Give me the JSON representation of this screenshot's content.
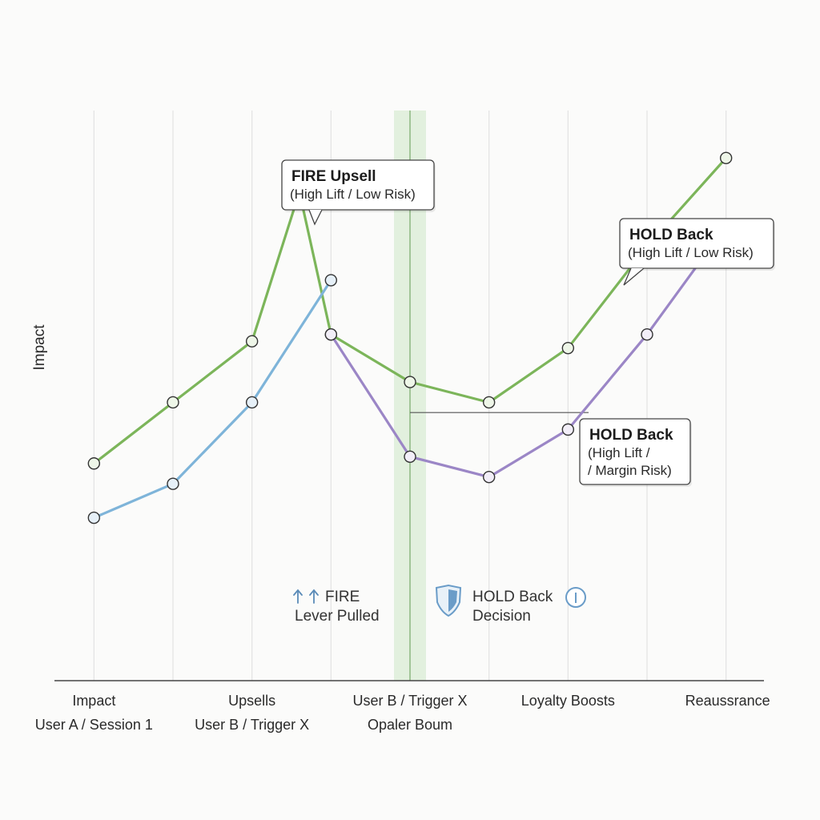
{
  "chart_data": {
    "type": "line",
    "ylabel": "Impact",
    "categories": [
      "Impact\nUser A / Session 1",
      "",
      "Upsells\nUser B / Trigger X",
      "",
      "User B / Trigger X\nOpaler Boum",
      "",
      "Loyalty Boosts",
      "",
      "Reaussrance"
    ],
    "series": [
      {
        "key": "green",
        "color": "#7cb55a",
        "points": [
          [
            0,
            2.3
          ],
          [
            1,
            3.2
          ],
          [
            2,
            4.1
          ],
          [
            2.6,
            6.3
          ],
          [
            3,
            4.2
          ],
          [
            4,
            3.5
          ],
          [
            5,
            3.2
          ],
          [
            6,
            4.0
          ],
          [
            7,
            5.5
          ],
          [
            8,
            6.8
          ]
        ]
      },
      {
        "key": "blue",
        "color": "#7eb4d9",
        "points": [
          [
            0,
            1.5
          ],
          [
            1,
            2.0
          ],
          [
            2,
            3.2
          ],
          [
            3,
            5.0
          ]
        ]
      },
      {
        "key": "purple",
        "color": "#9b86c6",
        "points": [
          [
            3,
            4.2
          ],
          [
            4,
            2.4
          ],
          [
            5,
            2.1
          ],
          [
            6,
            2.8
          ],
          [
            7,
            4.2
          ],
          [
            8,
            5.8
          ]
        ]
      }
    ],
    "xlim": [
      -0.5,
      8.5
    ],
    "ylim": [
      -0.9,
      7.5
    ],
    "highlight_x": 4,
    "guide_y": 3.05,
    "grid": "vertical",
    "annotations": [
      {
        "key": "fire_upsell",
        "title": "FIRE Upsell",
        "sub": [
          "(High Lift / Low Risk)"
        ]
      },
      {
        "key": "hold_back_1",
        "title": "HOLD Back",
        "sub": [
          "(High Lift / Low Risk)"
        ]
      },
      {
        "key": "hold_back_2",
        "title": "HOLD Back",
        "sub": [
          "(High Lift /",
          "/ Margin Risk)"
        ]
      }
    ],
    "legend": [
      {
        "key": "fire",
        "icon": "double-up-arrow-icon",
        "lines": [
          "FIRE",
          "Lever Pulled"
        ],
        "color": "#5a8bb8"
      },
      {
        "key": "hold",
        "icon": "shield-icon",
        "lines": [
          "HOLD Back",
          "Decision"
        ],
        "color": "#6a9cc8"
      }
    ]
  }
}
